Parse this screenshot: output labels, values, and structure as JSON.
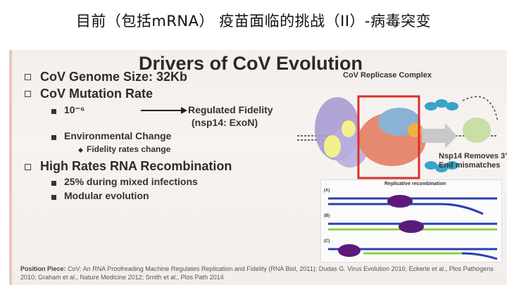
{
  "header": {
    "title": "目前（包括mRNA） 疫苗面临的挑战（II）-病毒突变"
  },
  "slide": {
    "title": "Drivers of CoV Evolution",
    "bullets": {
      "genome_size": "CoV Genome Size: 32Kb",
      "mutation_rate": "CoV Mutation Rate",
      "rate_value": "10⁻⁶",
      "regulated_fidelity": "Regulated Fidelity",
      "nsp14": "(nsp14: ExoN)",
      "environmental_change": "Environmental Change",
      "fidelity_rates_change": "Fidelity rates change",
      "recombination": "High Rates RNA Recombination",
      "mixed_infections": "25% during mixed infections",
      "modular_evolution": "Modular evolution"
    },
    "diagram": {
      "replicase_title": "CoV Replicase Complex",
      "nsp14_note_1": "Nsp14 Removes 3’",
      "nsp14_note_2": "End mismatches",
      "recomb_title": "Replicative recombination",
      "panel_labels": [
        "(A)",
        "(B)",
        "(C)"
      ]
    },
    "footer": {
      "label": "Position Piece:",
      "text": "CoV: An RNA Proofreading Machine Regulates Replication and Fidelity (RNA Biol, 2011); Dudas G. Virus Evolution 2016; Eckerle et al., Plos Pathogens 2010; Graham et al., Nature Medicine 2012; Smith et al., Plos Path 2014"
    }
  },
  "colors": {
    "highlight_box": "#d9302a",
    "polymerase_purple": "#5b1a7a",
    "helix_teal": "#3aa3c9",
    "strand_blue": "#2a3fb5",
    "strand_green": "#8fcf4a"
  }
}
